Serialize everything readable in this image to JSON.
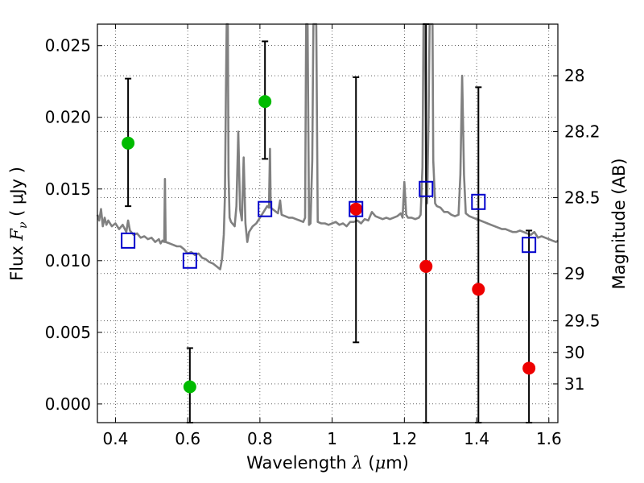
{
  "chart_data": {
    "type": "scatter",
    "title": "",
    "xlabel": {
      "prefix": "Wavelength  ",
      "symbol": "λ",
      "unit_open": " (",
      "unit_mu": "μ",
      "unit_rest": "m)"
    },
    "ylabel": {
      "prefix": "Flux  ",
      "symbol": "F",
      "subscript": "ν",
      "unit": "  ( μJy )"
    },
    "y2label": "Magnitude (AB)",
    "xlim": [
      0.35,
      1.625
    ],
    "ylim": [
      -0.0013,
      0.0265
    ],
    "grid": true,
    "x_ticks": [
      0.4,
      0.6,
      0.8,
      1.0,
      1.2,
      1.4,
      1.6
    ],
    "x_tick_labels": [
      "0.4",
      "0.6",
      "0.8",
      "1",
      "1.2",
      "1.4",
      "1.6"
    ],
    "y_ticks": [
      0.0,
      0.005,
      0.01,
      0.015,
      0.02,
      0.025
    ],
    "y_tick_labels": [
      "0.000",
      "0.005",
      "0.010",
      "0.015",
      "0.020",
      "0.025"
    ],
    "y2_ticks": [
      {
        "label": "28",
        "flux": 0.0229
      },
      {
        "label": "28.2",
        "flux": 0.019
      },
      {
        "label": "28.5",
        "flux": 0.0144
      },
      {
        "label": "29",
        "flux": 0.0091
      },
      {
        "label": "29.5",
        "flux": 0.0058
      },
      {
        "label": "30",
        "flux": 0.0036
      },
      {
        "label": "31",
        "flux": 0.0014
      }
    ],
    "series": [
      {
        "marker": "circle",
        "color": "#00bb00",
        "points": [
          {
            "x": 0.435,
            "y": 0.0182,
            "err_lo": 0.0138,
            "err_hi": 0.0227
          },
          {
            "x": 0.606,
            "y": 0.0012,
            "err_lo": -0.0013,
            "err_hi": 0.0039
          },
          {
            "x": 0.814,
            "y": 0.0211,
            "err_lo": 0.0171,
            "err_hi": 0.0253
          }
        ]
      },
      {
        "marker": "circle",
        "color": "#ee0000",
        "points": [
          {
            "x": 1.066,
            "y": 0.0136,
            "err_lo": 0.0043,
            "err_hi": 0.0228
          },
          {
            "x": 1.26,
            "y": 0.0096,
            "err_lo": -0.0013,
            "err_hi": 0.0265
          },
          {
            "x": 1.405,
            "y": 0.008,
            "err_lo": -0.0013,
            "err_hi": 0.0221
          },
          {
            "x": 1.545,
            "y": 0.0025,
            "err_lo": -0.0013,
            "err_hi": 0.0121
          }
        ]
      },
      {
        "marker": "square",
        "color": "#0000cc",
        "points": [
          {
            "x": 0.435,
            "y": 0.0114
          },
          {
            "x": 0.606,
            "y": 0.01
          },
          {
            "x": 0.814,
            "y": 0.0136
          },
          {
            "x": 1.066,
            "y": 0.0136
          },
          {
            "x": 1.26,
            "y": 0.015
          },
          {
            "x": 1.405,
            "y": 0.0141
          },
          {
            "x": 1.545,
            "y": 0.0111
          }
        ]
      },
      {
        "type": "line",
        "color": "#808080",
        "points": [
          [
            0.35,
            0.0132
          ],
          [
            0.355,
            0.0128
          ],
          [
            0.36,
            0.0136
          ],
          [
            0.365,
            0.0124
          ],
          [
            0.37,
            0.013
          ],
          [
            0.375,
            0.0125
          ],
          [
            0.38,
            0.0128
          ],
          [
            0.39,
            0.0124
          ],
          [
            0.4,
            0.0126
          ],
          [
            0.41,
            0.0122
          ],
          [
            0.42,
            0.0125
          ],
          [
            0.43,
            0.012
          ],
          [
            0.435,
            0.0128
          ],
          [
            0.44,
            0.0121
          ],
          [
            0.45,
            0.0118
          ],
          [
            0.46,
            0.0119
          ],
          [
            0.47,
            0.0116
          ],
          [
            0.48,
            0.0117
          ],
          [
            0.49,
            0.0115
          ],
          [
            0.5,
            0.0116
          ],
          [
            0.51,
            0.0113
          ],
          [
            0.52,
            0.0115
          ],
          [
            0.525,
            0.0112
          ],
          [
            0.53,
            0.0114
          ],
          [
            0.535,
            0.0113
          ],
          [
            0.537,
            0.0157
          ],
          [
            0.539,
            0.0113
          ],
          [
            0.55,
            0.0112
          ],
          [
            0.56,
            0.0111
          ],
          [
            0.57,
            0.011
          ],
          [
            0.58,
            0.011
          ],
          [
            0.59,
            0.0108
          ],
          [
            0.6,
            0.0105
          ],
          [
            0.61,
            0.0106
          ],
          [
            0.62,
            0.0104
          ],
          [
            0.63,
            0.0105
          ],
          [
            0.64,
            0.0102
          ],
          [
            0.65,
            0.0101
          ],
          [
            0.66,
            0.0099
          ],
          [
            0.67,
            0.0098
          ],
          [
            0.68,
            0.0096
          ],
          [
            0.69,
            0.0094
          ],
          [
            0.695,
            0.0101
          ],
          [
            0.7,
            0.0118
          ],
          [
            0.703,
            0.0145
          ],
          [
            0.706,
            0.022
          ],
          [
            0.708,
            0.0265
          ],
          [
            0.711,
            0.0265
          ],
          [
            0.713,
            0.016
          ],
          [
            0.716,
            0.013
          ],
          [
            0.72,
            0.0127
          ],
          [
            0.73,
            0.0124
          ],
          [
            0.735,
            0.0138
          ],
          [
            0.74,
            0.019
          ],
          [
            0.745,
            0.0136
          ],
          [
            0.75,
            0.0128
          ],
          [
            0.755,
            0.0172
          ],
          [
            0.76,
            0.0126
          ],
          [
            0.765,
            0.0113
          ],
          [
            0.77,
            0.012
          ],
          [
            0.78,
            0.0124
          ],
          [
            0.79,
            0.0126
          ],
          [
            0.8,
            0.013
          ],
          [
            0.81,
            0.0134
          ],
          [
            0.82,
            0.0138
          ],
          [
            0.825,
            0.0137
          ],
          [
            0.828,
            0.0178
          ],
          [
            0.83,
            0.0137
          ],
          [
            0.84,
            0.0135
          ],
          [
            0.85,
            0.0133
          ],
          [
            0.856,
            0.0142
          ],
          [
            0.86,
            0.0132
          ],
          [
            0.87,
            0.0131
          ],
          [
            0.88,
            0.013
          ],
          [
            0.89,
            0.013
          ],
          [
            0.9,
            0.0129
          ],
          [
            0.91,
            0.0128
          ],
          [
            0.92,
            0.0127
          ],
          [
            0.925,
            0.013
          ],
          [
            0.928,
            0.0265
          ],
          [
            0.932,
            0.0265
          ],
          [
            0.936,
            0.0125
          ],
          [
            0.94,
            0.0126
          ],
          [
            0.945,
            0.017
          ],
          [
            0.948,
            0.0265
          ],
          [
            0.956,
            0.0265
          ],
          [
            0.96,
            0.0127
          ],
          [
            0.97,
            0.0126
          ],
          [
            0.98,
            0.0126
          ],
          [
            0.99,
            0.0125
          ],
          [
            1.0,
            0.0126
          ],
          [
            1.01,
            0.0127
          ],
          [
            1.02,
            0.0125
          ],
          [
            1.03,
            0.0126
          ],
          [
            1.04,
            0.0124
          ],
          [
            1.05,
            0.0127
          ],
          [
            1.06,
            0.0127
          ],
          [
            1.07,
            0.0128
          ],
          [
            1.08,
            0.0126
          ],
          [
            1.09,
            0.0129
          ],
          [
            1.1,
            0.0128
          ],
          [
            1.11,
            0.0134
          ],
          [
            1.12,
            0.0131
          ],
          [
            1.13,
            0.013
          ],
          [
            1.14,
            0.0129
          ],
          [
            1.15,
            0.013
          ],
          [
            1.16,
            0.0129
          ],
          [
            1.17,
            0.013
          ],
          [
            1.18,
            0.0131
          ],
          [
            1.19,
            0.0133
          ],
          [
            1.195,
            0.013
          ],
          [
            1.2,
            0.0155
          ],
          [
            1.205,
            0.0132
          ],
          [
            1.21,
            0.013
          ],
          [
            1.22,
            0.013
          ],
          [
            1.23,
            0.0129
          ],
          [
            1.24,
            0.013
          ],
          [
            1.245,
            0.0132
          ],
          [
            1.25,
            0.0165
          ],
          [
            1.253,
            0.0265
          ],
          [
            1.257,
            0.0265
          ],
          [
            1.26,
            0.016
          ],
          [
            1.263,
            0.014
          ],
          [
            1.267,
            0.02
          ],
          [
            1.27,
            0.0265
          ],
          [
            1.278,
            0.0265
          ],
          [
            1.28,
            0.017
          ],
          [
            1.285,
            0.014
          ],
          [
            1.29,
            0.0138
          ],
          [
            1.3,
            0.0137
          ],
          [
            1.31,
            0.0134
          ],
          [
            1.32,
            0.0134
          ],
          [
            1.33,
            0.0132
          ],
          [
            1.34,
            0.0131
          ],
          [
            1.35,
            0.0132
          ],
          [
            1.355,
            0.016
          ],
          [
            1.36,
            0.0229
          ],
          [
            1.365,
            0.016
          ],
          [
            1.37,
            0.0133
          ],
          [
            1.38,
            0.0131
          ],
          [
            1.39,
            0.013
          ],
          [
            1.4,
            0.0129
          ],
          [
            1.41,
            0.0128
          ],
          [
            1.42,
            0.0127
          ],
          [
            1.43,
            0.0126
          ],
          [
            1.44,
            0.0125
          ],
          [
            1.45,
            0.0124
          ],
          [
            1.46,
            0.0123
          ],
          [
            1.47,
            0.0122
          ],
          [
            1.48,
            0.0122
          ],
          [
            1.49,
            0.0121
          ],
          [
            1.5,
            0.012
          ],
          [
            1.51,
            0.012
          ],
          [
            1.52,
            0.0121
          ],
          [
            1.53,
            0.012
          ],
          [
            1.54,
            0.0119
          ],
          [
            1.55,
            0.0118
          ],
          [
            1.56,
            0.012
          ],
          [
            1.57,
            0.0116
          ],
          [
            1.58,
            0.0117
          ],
          [
            1.59,
            0.0116
          ],
          [
            1.6,
            0.0115
          ],
          [
            1.61,
            0.0114
          ],
          [
            1.62,
            0.0113
          ],
          [
            1.625,
            0.0114
          ]
        ]
      }
    ]
  }
}
